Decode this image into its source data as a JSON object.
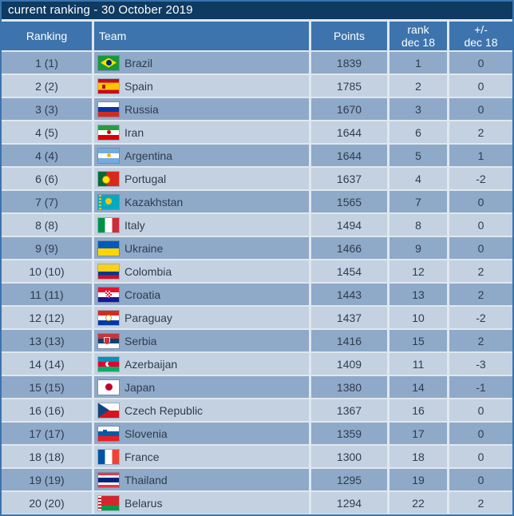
{
  "title": "current ranking - 30 October 2019",
  "colors": {
    "outer_border": "#3a74ae",
    "title_bg": "#0f3a61",
    "header_bg": "#3d74ad",
    "row_odd_bg": "#8fa9c8",
    "row_even_bg": "#c4d1e0",
    "separator": "#dfe8f0",
    "row_text": "#2e3c4e",
    "header_text": "#ffffff"
  },
  "table": {
    "header": {
      "ranking": "Ranking",
      "team": "Team",
      "points": "Points",
      "rank_col": {
        "line1": "rank",
        "line2": "dec 18"
      },
      "change_col": {
        "line1": "+/-",
        "line2": "dec 18"
      }
    },
    "rows": [
      {
        "ranking": "1 (1)",
        "team": "Brazil",
        "flag": "brazil",
        "points": "1839",
        "rank_dec18": "1",
        "change_dec18": "0"
      },
      {
        "ranking": "2 (2)",
        "team": "Spain",
        "flag": "spain",
        "points": "1785",
        "rank_dec18": "2",
        "change_dec18": "0"
      },
      {
        "ranking": "3 (3)",
        "team": "Russia",
        "flag": "russia",
        "points": "1670",
        "rank_dec18": "3",
        "change_dec18": "0"
      },
      {
        "ranking": "4 (5)",
        "team": "Iran",
        "flag": "iran",
        "points": "1644",
        "rank_dec18": "6",
        "change_dec18": "2"
      },
      {
        "ranking": "4 (4)",
        "team": "Argentina",
        "flag": "argentina",
        "points": "1644",
        "rank_dec18": "5",
        "change_dec18": "1"
      },
      {
        "ranking": "6 (6)",
        "team": "Portugal",
        "flag": "portugal",
        "points": "1637",
        "rank_dec18": "4",
        "change_dec18": "-2"
      },
      {
        "ranking": "7 (7)",
        "team": "Kazakhstan",
        "flag": "kazakhstan",
        "points": "1565",
        "rank_dec18": "7",
        "change_dec18": "0"
      },
      {
        "ranking": "8 (8)",
        "team": "Italy",
        "flag": "italy",
        "points": "1494",
        "rank_dec18": "8",
        "change_dec18": "0"
      },
      {
        "ranking": "9 (9)",
        "team": "Ukraine",
        "flag": "ukraine",
        "points": "1466",
        "rank_dec18": "9",
        "change_dec18": "0"
      },
      {
        "ranking": "10 (10)",
        "team": "Colombia",
        "flag": "colombia",
        "points": "1454",
        "rank_dec18": "12",
        "change_dec18": "2"
      },
      {
        "ranking": "11 (11)",
        "team": "Croatia",
        "flag": "croatia",
        "points": "1443",
        "rank_dec18": "13",
        "change_dec18": "2"
      },
      {
        "ranking": "12 (12)",
        "team": "Paraguay",
        "flag": "paraguay",
        "points": "1437",
        "rank_dec18": "10",
        "change_dec18": "-2"
      },
      {
        "ranking": "13 (13)",
        "team": "Serbia",
        "flag": "serbia",
        "points": "1416",
        "rank_dec18": "15",
        "change_dec18": "2"
      },
      {
        "ranking": "14 (14)",
        "team": "Azerbaijan",
        "flag": "azerbaijan",
        "points": "1409",
        "rank_dec18": "11",
        "change_dec18": "-3"
      },
      {
        "ranking": "15 (15)",
        "team": "Japan",
        "flag": "japan",
        "points": "1380",
        "rank_dec18": "14",
        "change_dec18": "-1"
      },
      {
        "ranking": "16 (16)",
        "team": "Czech Republic",
        "flag": "czech-republic",
        "points": "1367",
        "rank_dec18": "16",
        "change_dec18": "0"
      },
      {
        "ranking": "17 (17)",
        "team": "Slovenia",
        "flag": "slovenia",
        "points": "1359",
        "rank_dec18": "17",
        "change_dec18": "0"
      },
      {
        "ranking": "18 (18)",
        "team": "France",
        "flag": "france",
        "points": "1300",
        "rank_dec18": "18",
        "change_dec18": "0"
      },
      {
        "ranking": "19 (19)",
        "team": "Thailand",
        "flag": "thailand",
        "points": "1295",
        "rank_dec18": "19",
        "change_dec18": "0"
      },
      {
        "ranking": "20 (20)",
        "team": "Belarus",
        "flag": "belarus",
        "points": "1294",
        "rank_dec18": "22",
        "change_dec18": "2"
      }
    ]
  }
}
